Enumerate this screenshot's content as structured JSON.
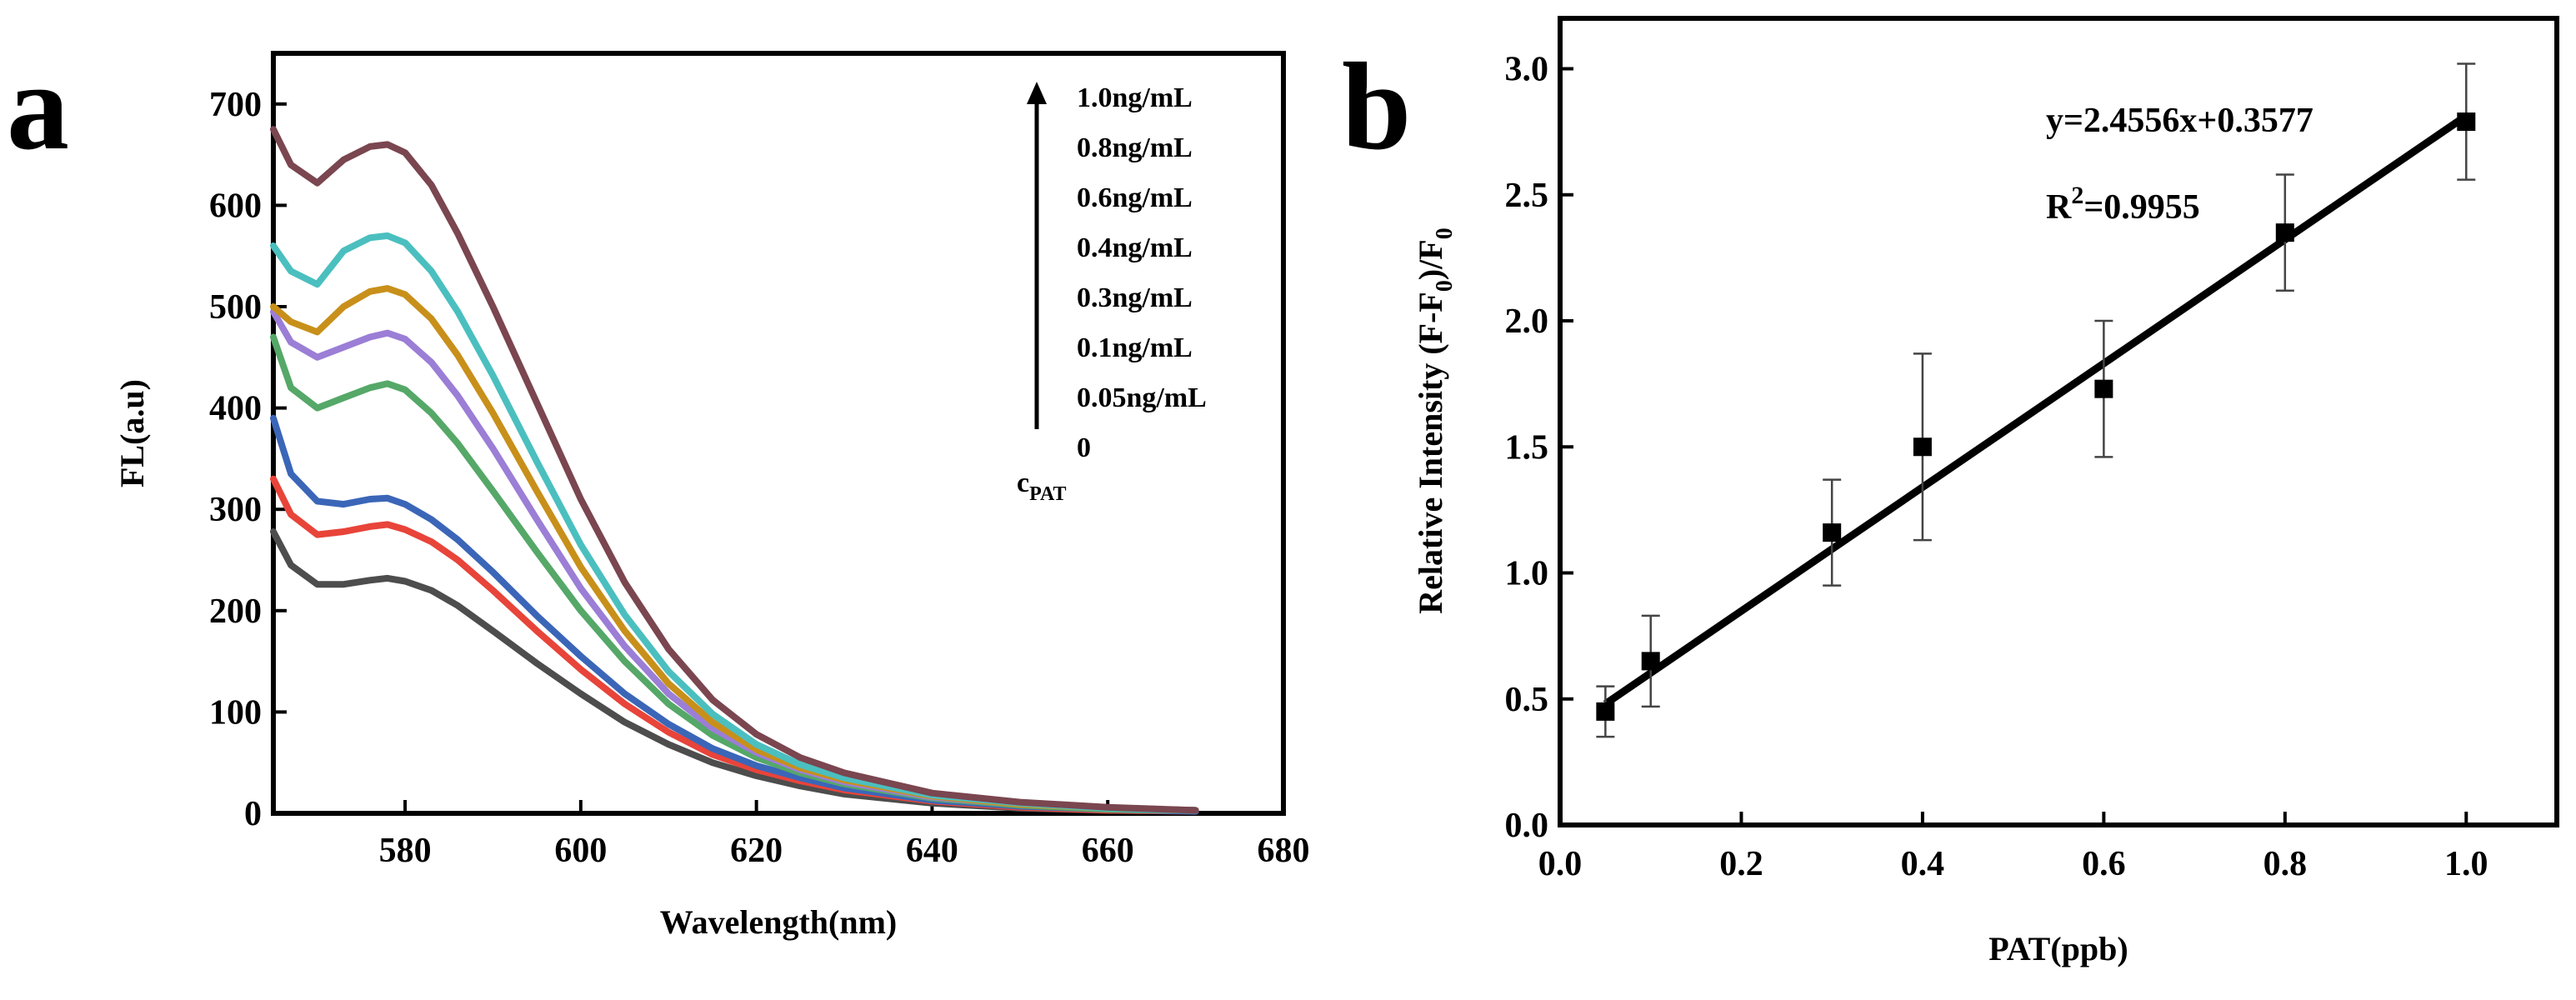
{
  "colors": {
    "background": "#ffffff",
    "axis": "#000000",
    "fit_line": "#000000"
  },
  "chart_data": [
    {
      "panel": "a",
      "type": "line",
      "title": "",
      "xlabel": "Wavelength(nm)",
      "ylabel": "FL(a.u)",
      "xlim": [
        565,
        680
      ],
      "ylim": [
        0,
        750
      ],
      "xticks": [
        580,
        600,
        620,
        640,
        660,
        680
      ],
      "yticks": [
        0,
        100,
        200,
        300,
        400,
        500,
        600,
        700
      ],
      "legend_title": "c",
      "legend_title_sub": "PAT",
      "legend_arrow": "increasing concentration upward",
      "curve_x": [
        565,
        567,
        570,
        573,
        576,
        578,
        580,
        583,
        586,
        590,
        595,
        600,
        605,
        610,
        615,
        620,
        625,
        630,
        640,
        650,
        660,
        670
      ],
      "series": [
        {
          "name": "0",
          "color": "#4d4d4d",
          "values": [
            278,
            245,
            226,
            226,
            230,
            232,
            229,
            220,
            205,
            180,
            148,
            118,
            90,
            68,
            50,
            37,
            27,
            19,
            10,
            5,
            3,
            2
          ]
        },
        {
          "name": "0.05ng/mL",
          "color": "#e8443a",
          "values": [
            330,
            295,
            275,
            278,
            283,
            285,
            280,
            268,
            250,
            220,
            180,
            142,
            108,
            80,
            58,
            43,
            32,
            23,
            12,
            6,
            3,
            2
          ]
        },
        {
          "name": "0.1ng/mL",
          "color": "#3b66b8",
          "values": [
            390,
            335,
            308,
            305,
            310,
            311,
            305,
            290,
            270,
            238,
            195,
            155,
            118,
            88,
            64,
            47,
            35,
            25,
            13,
            7,
            4,
            2
          ]
        },
        {
          "name": "0.3ng/mL",
          "color": "#55a868",
          "values": [
            470,
            420,
            400,
            410,
            420,
            424,
            418,
            395,
            365,
            318,
            258,
            200,
            150,
            108,
            77,
            55,
            40,
            29,
            15,
            8,
            4,
            3
          ]
        },
        {
          "name": "0.4ng/mL",
          "color": "#9b7ed6",
          "values": [
            495,
            465,
            450,
            460,
            470,
            474,
            468,
            445,
            412,
            360,
            290,
            222,
            165,
            118,
            84,
            60,
            43,
            31,
            16,
            9,
            5,
            3
          ]
        },
        {
          "name": "0.6ng/mL",
          "color": "#c8901a",
          "values": [
            500,
            485,
            475,
            500,
            515,
            518,
            512,
            488,
            452,
            395,
            318,
            243,
            180,
            128,
            90,
            63,
            45,
            33,
            17,
            9,
            5,
            3
          ]
        },
        {
          "name": "0.8ng/mL",
          "color": "#4bbfbf",
          "values": [
            560,
            535,
            522,
            555,
            568,
            570,
            563,
            535,
            495,
            432,
            347,
            265,
            196,
            140,
            98,
            68,
            48,
            35,
            18,
            10,
            5,
            3
          ]
        },
        {
          "name": "1.0ng/mL",
          "color": "#7a4650",
          "values": [
            675,
            640,
            622,
            645,
            658,
            660,
            652,
            620,
            572,
            500,
            405,
            310,
            228,
            162,
            112,
            78,
            55,
            40,
            20,
            11,
            6,
            3
          ]
        }
      ]
    },
    {
      "panel": "b",
      "type": "scatter",
      "title": "",
      "xlabel": "PAT(ppb)",
      "ylabel": "Relative Intensity (F-F",
      "ylabel_sub": "0",
      "ylabel_mid": ")/F",
      "ylabel_sub2": "0",
      "xlim": [
        0.0,
        1.1
      ],
      "ylim": [
        0.0,
        3.2
      ],
      "xticks": [
        0.0,
        0.2,
        0.4,
        0.6,
        0.8,
        1.0
      ],
      "xtick_labels": [
        "0.0",
        "0.2",
        "0.4",
        "0.6",
        "0.8",
        "1.0"
      ],
      "yticks": [
        0.0,
        0.5,
        1.0,
        1.5,
        2.0,
        2.5,
        3.0
      ],
      "ytick_labels": [
        "0.0",
        "0.5",
        "1.0",
        "1.5",
        "2.0",
        "2.5",
        "3.0"
      ],
      "points": [
        {
          "x": 0.05,
          "y": 0.45,
          "err": 0.1
        },
        {
          "x": 0.1,
          "y": 0.65,
          "err": 0.18
        },
        {
          "x": 0.3,
          "y": 1.16,
          "err": 0.21
        },
        {
          "x": 0.4,
          "y": 1.5,
          "err": 0.37
        },
        {
          "x": 0.6,
          "y": 1.73,
          "err": 0.27
        },
        {
          "x": 0.8,
          "y": 2.35,
          "err": 0.23
        },
        {
          "x": 1.0,
          "y": 2.79,
          "err": 0.23
        }
      ],
      "fit": {
        "slope": 2.4556,
        "intercept": 0.3577,
        "x_range": [
          0.05,
          1.0
        ]
      },
      "equation": "y=2.4556x+0.3577",
      "r2_prefix": "R",
      "r2_sup": "2",
      "r2_value": "=0.9955"
    }
  ]
}
